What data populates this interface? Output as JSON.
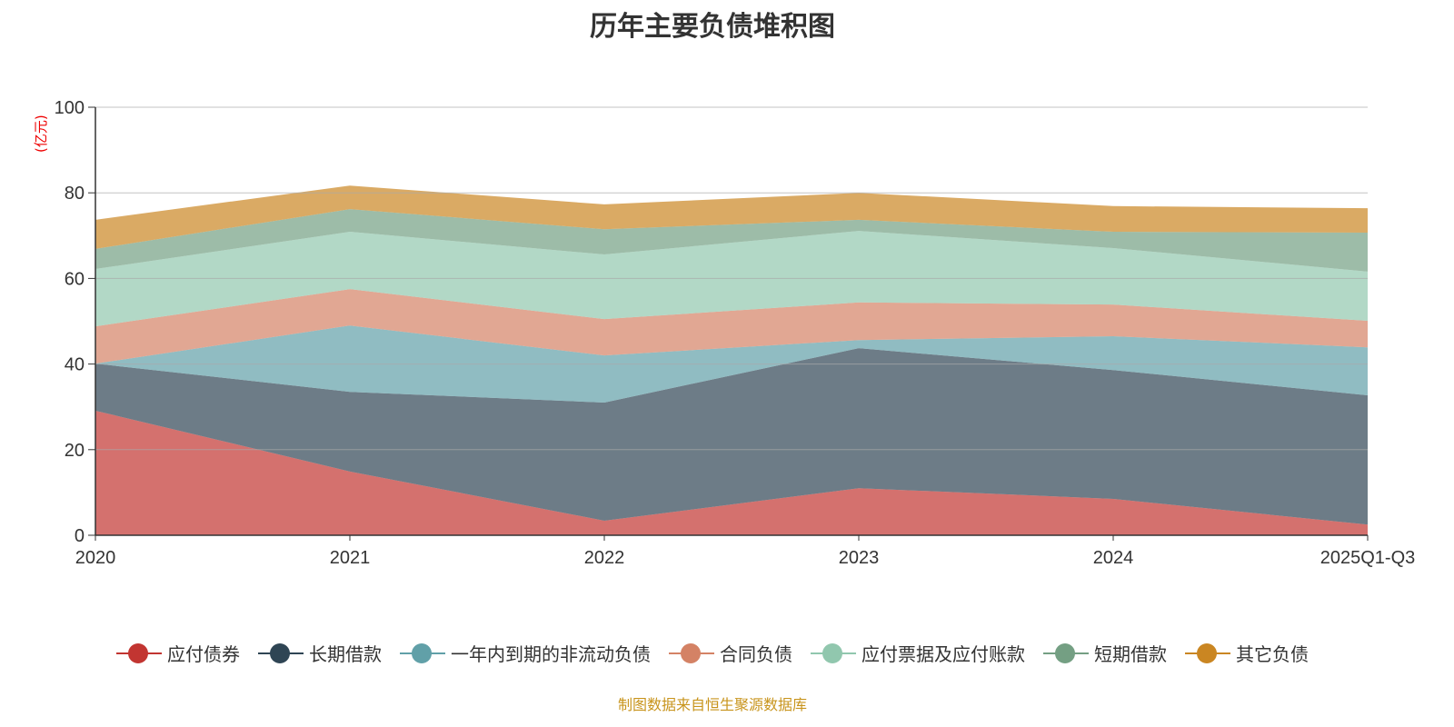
{
  "chart_data": {
    "type": "area",
    "stacked": true,
    "title": "历年主要负债堆积图",
    "ylabel": "(亿元)",
    "xlabel": "",
    "categories": [
      "2020",
      "2021",
      "2022",
      "2023",
      "2024",
      "2025Q1-Q3"
    ],
    "ylim": [
      0,
      100
    ],
    "yticks": [
      0,
      20,
      40,
      60,
      80,
      100
    ],
    "grid": true,
    "legend_position": "bottom",
    "series": [
      {
        "name": "应付债券",
        "color": "#c23531",
        "values": [
          29.1,
          14.9,
          3.4,
          11.0,
          8.5,
          2.5
        ]
      },
      {
        "name": "长期借款",
        "color": "#2f4554",
        "values": [
          11.0,
          18.6,
          27.6,
          32.7,
          30.1,
          30.2
        ]
      },
      {
        "name": "一年内到期的非流动负债",
        "color": "#61a0a8",
        "values": [
          0,
          15.5,
          11.0,
          1.9,
          7.9,
          11.2
        ]
      },
      {
        "name": "合同负债",
        "color": "#d48265",
        "values": [
          8.7,
          8.5,
          8.5,
          8.8,
          7.4,
          6.2
        ]
      },
      {
        "name": "应付票据及应付账款",
        "color": "#91c7ae",
        "values": [
          13.4,
          13.4,
          15.1,
          16.7,
          13.2,
          11.5
        ]
      },
      {
        "name": "短期借款",
        "color": "#749f83",
        "values": [
          4.7,
          5.3,
          5.9,
          2.6,
          3.8,
          9.1
        ]
      },
      {
        "name": "其它负债",
        "color": "#ca8622",
        "values": [
          6.8,
          5.5,
          5.8,
          6.3,
          6.0,
          5.7
        ]
      }
    ]
  },
  "source": "制图数据来自恒生聚源数据库"
}
